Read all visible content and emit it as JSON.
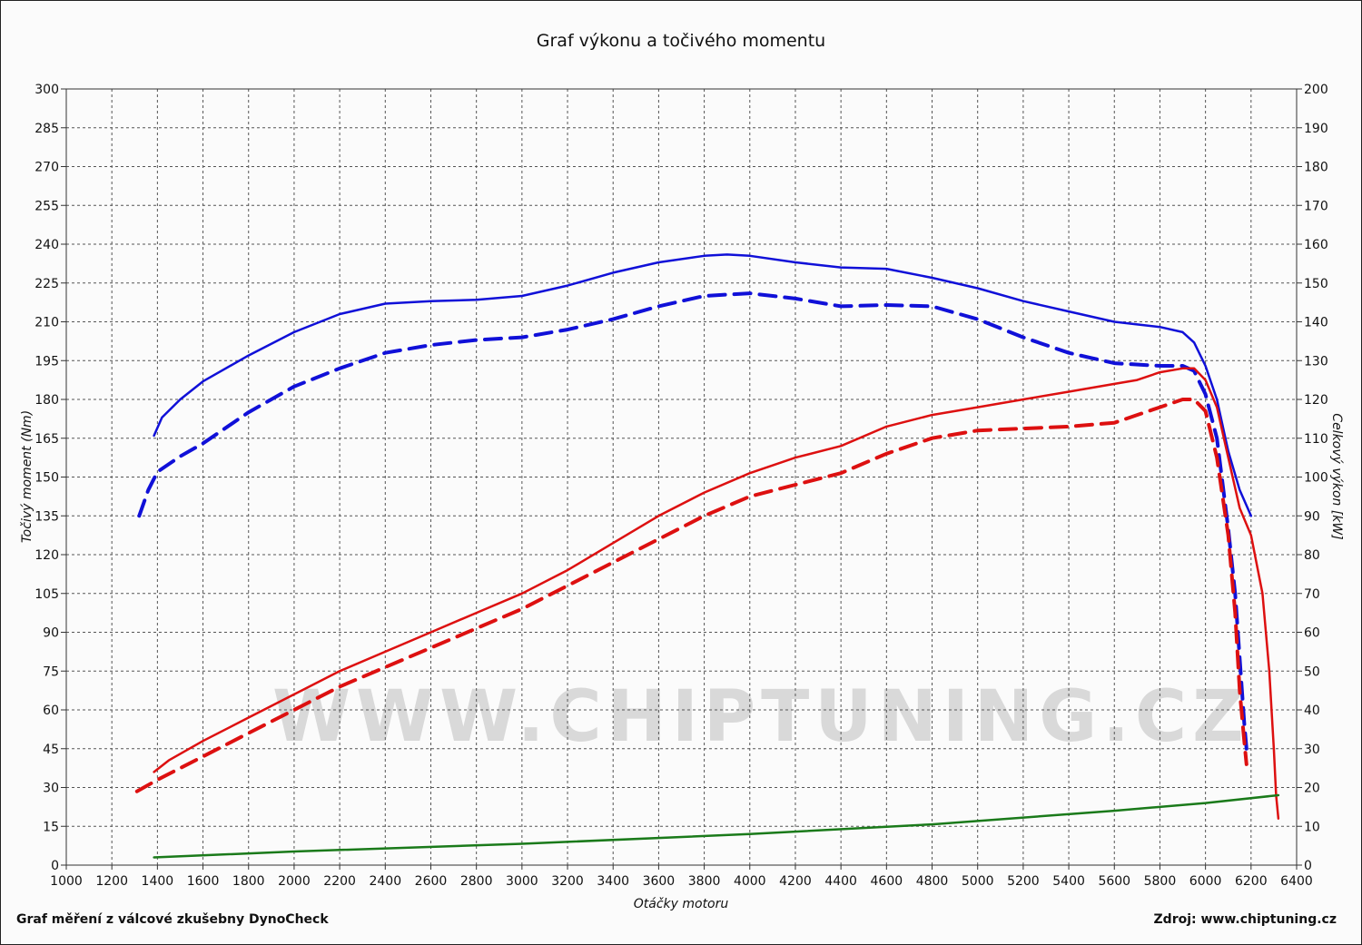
{
  "chart_data": {
    "type": "line",
    "title": "Graf výkonu a točivého momentu",
    "xlabel": "Otáčky motoru",
    "ylabel_left": "Točivý moment (Nm)",
    "ylabel_right": "Celkový výkon [kW]",
    "xlim": [
      1000,
      6400
    ],
    "ylim_left": [
      0,
      300
    ],
    "ylim_right": [
      0,
      200
    ],
    "x_ticks": [
      1000,
      1200,
      1400,
      1600,
      1800,
      2000,
      2200,
      2400,
      2600,
      2800,
      3000,
      3200,
      3400,
      3600,
      3800,
      4000,
      4200,
      4400,
      4600,
      4800,
      5000,
      5200,
      5400,
      5600,
      5800,
      6000,
      6200,
      6400
    ],
    "y_ticks_left": [
      0,
      15,
      30,
      45,
      60,
      75,
      90,
      105,
      120,
      135,
      150,
      165,
      180,
      195,
      210,
      225,
      240,
      255,
      270,
      285,
      300
    ],
    "y_ticks_right": [
      0,
      10,
      20,
      30,
      40,
      50,
      60,
      70,
      80,
      90,
      100,
      110,
      120,
      130,
      140,
      150,
      160,
      170,
      180,
      190,
      200
    ],
    "grid": true,
    "series": [
      {
        "axis": "left",
        "color": "#1010d8",
        "dash": false,
        "x": [
          1385,
          1420,
          1500,
          1600,
          1800,
          2000,
          2200,
          2400,
          2600,
          2800,
          3000,
          3200,
          3400,
          3600,
          3800,
          3900,
          4000,
          4200,
          4400,
          4600,
          4800,
          5000,
          5200,
          5400,
          5600,
          5700,
          5800,
          5900,
          5950,
          6000,
          6050,
          6100,
          6150,
          6200
        ],
        "y": [
          166,
          173,
          180,
          187,
          197,
          206,
          213,
          217,
          218,
          218.5,
          220,
          224,
          229,
          233,
          235.5,
          236,
          235.5,
          233,
          231,
          230.5,
          227,
          223,
          218,
          214,
          210,
          209,
          208,
          206,
          202,
          193,
          180,
          160,
          145,
          135
        ]
      },
      {
        "axis": "left",
        "color": "#1010d8",
        "dash": true,
        "x": [
          1320,
          1360,
          1400,
          1500,
          1600,
          1800,
          2000,
          2200,
          2400,
          2600,
          2800,
          3000,
          3200,
          3400,
          3600,
          3800,
          4000,
          4200,
          4400,
          4600,
          4800,
          5000,
          5200,
          5400,
          5500,
          5600,
          5800,
          5900,
          5950,
          6000,
          6050,
          6100,
          6130,
          6150,
          6170,
          6180
        ],
        "y": [
          135,
          145,
          152,
          158,
          163,
          175,
          185,
          192,
          198,
          201,
          203,
          204,
          207,
          211,
          216,
          220,
          221,
          219,
          216,
          216.5,
          216,
          211,
          204,
          198,
          196,
          194,
          193,
          193,
          191,
          182,
          165,
          130,
          105,
          80,
          55,
          45
        ]
      },
      {
        "axis": "right",
        "color": "#dd1010",
        "dash": false,
        "x": [
          1385,
          1450,
          1600,
          1800,
          2000,
          2200,
          2400,
          2600,
          2800,
          3000,
          3200,
          3400,
          3600,
          3800,
          4000,
          4200,
          4400,
          4600,
          4800,
          5000,
          5200,
          5400,
          5600,
          5700,
          5800,
          5900,
          5950,
          6000,
          6050,
          6100,
          6150,
          6200,
          6250,
          6280,
          6300,
          6310,
          6320
        ],
        "y": [
          24,
          27,
          32,
          38,
          44,
          50,
          55,
          60,
          65,
          70,
          76,
          83,
          90,
          96,
          101,
          105,
          108,
          113,
          116,
          118,
          120,
          122,
          124,
          125,
          127,
          128,
          128,
          125,
          118,
          105,
          92,
          85,
          70,
          50,
          30,
          18,
          12
        ]
      },
      {
        "axis": "right",
        "color": "#dd1010",
        "dash": true,
        "x": [
          1310,
          1400,
          1600,
          1800,
          2000,
          2200,
          2400,
          2600,
          2800,
          3000,
          3200,
          3400,
          3600,
          3800,
          4000,
          4200,
          4400,
          4600,
          4800,
          5000,
          5200,
          5400,
          5600,
          5800,
          5900,
          5950,
          6000,
          6050,
          6100,
          6130,
          6150,
          6170,
          6180
        ],
        "y": [
          19,
          22,
          28,
          34,
          40,
          46,
          51,
          56,
          61,
          66,
          72,
          78,
          84,
          90,
          95,
          98,
          101,
          106,
          110,
          112,
          112.5,
          113,
          114,
          118,
          120,
          120,
          117,
          105,
          85,
          65,
          45,
          32,
          26
        ]
      },
      {
        "axis": "right",
        "color": "#1a7a1a",
        "dash": false,
        "x": [
          1385,
          2000,
          3000,
          4000,
          4800,
          5600,
          6000,
          6320
        ],
        "y": [
          2,
          3.5,
          5.5,
          8,
          10.5,
          14,
          16,
          18
        ]
      }
    ]
  },
  "footer": {
    "left": "Graf měření z válcové zkušebny DynoCheck",
    "right": "Zdroj: www.chiptuning.cz"
  },
  "watermark": "WWW.CHIPTUNING.CZ"
}
